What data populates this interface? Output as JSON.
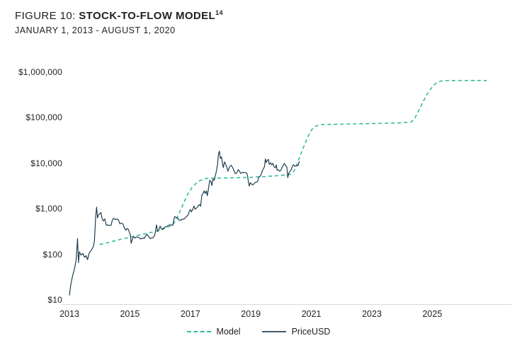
{
  "figure": {
    "title_prefix": "FIGURE 10: ",
    "title_main": "STOCK-TO-FLOW MODEL",
    "title_superscript": "14",
    "subtitle": "JANUARY 1, 2013 - AUGUST 1, 2020"
  },
  "legend": {
    "position": "bottom-center",
    "items": [
      {
        "label": "Model",
        "style": "dashed",
        "color": "#2fbc9c"
      },
      {
        "label": "PriceUSD",
        "style": "solid",
        "color": "#18384c"
      }
    ]
  },
  "colors": {
    "text": "#231f20",
    "axis_line": "#d9d9d9",
    "background": "#ffffff",
    "model_line": "#2fbc9c",
    "price_line": "#18384c"
  },
  "chart_data": {
    "type": "line",
    "title": "Stock-to-Flow Model",
    "subtitle": "January 1, 2013 - August 1, 2020",
    "grid": false,
    "x_axis": {
      "range": [
        2013,
        2026.9
      ],
      "ticks": [
        2013,
        2015,
        2017,
        2019,
        2021,
        2023,
        2025
      ]
    },
    "y_axis": {
      "scale": "log",
      "range": [
        10,
        1000000
      ],
      "ticks": [
        {
          "label": "$10",
          "value": 10
        },
        {
          "label": "$100",
          "value": 100
        },
        {
          "label": "$1,000",
          "value": 1000
        },
        {
          "label": "$10,000",
          "value": 10000
        },
        {
          "label": "$100,000",
          "value": 100000
        },
        {
          "label": "$1,000,000",
          "value": 1000000
        }
      ]
    },
    "series": [
      {
        "name": "Model",
        "color": "#2fbc9c",
        "dash": true,
        "points": [
          [
            2014.0,
            170
          ],
          [
            2014.25,
            185
          ],
          [
            2014.5,
            205
          ],
          [
            2014.75,
            225
          ],
          [
            2015.0,
            245
          ],
          [
            2015.25,
            268
          ],
          [
            2015.5,
            292
          ],
          [
            2015.75,
            320
          ],
          [
            2016.0,
            350
          ],
          [
            2016.2,
            390
          ],
          [
            2016.42,
            460
          ],
          [
            2016.55,
            640
          ],
          [
            2016.67,
            950
          ],
          [
            2016.8,
            1500
          ],
          [
            2016.92,
            2200
          ],
          [
            2017.05,
            3000
          ],
          [
            2017.17,
            3650
          ],
          [
            2017.3,
            4250
          ],
          [
            2017.42,
            4600
          ],
          [
            2017.55,
            4800
          ],
          [
            2017.8,
            4870
          ],
          [
            2018.0,
            4900
          ],
          [
            2018.5,
            4980
          ],
          [
            2019.0,
            5080
          ],
          [
            2019.5,
            5300
          ],
          [
            2020.0,
            5600
          ],
          [
            2020.3,
            5900
          ],
          [
            2020.42,
            6900
          ],
          [
            2020.52,
            9500
          ],
          [
            2020.62,
            14500
          ],
          [
            2020.72,
            21500
          ],
          [
            2020.82,
            31000
          ],
          [
            2020.92,
            44000
          ],
          [
            2021.02,
            57000
          ],
          [
            2021.12,
            66000
          ],
          [
            2021.22,
            71000
          ],
          [
            2021.35,
            73000
          ],
          [
            2021.7,
            74000
          ],
          [
            2022.2,
            75000
          ],
          [
            2022.8,
            76500
          ],
          [
            2023.4,
            78000
          ],
          [
            2024.0,
            80000
          ],
          [
            2024.3,
            83000
          ],
          [
            2024.42,
            100000
          ],
          [
            2024.52,
            135000
          ],
          [
            2024.62,
            185000
          ],
          [
            2024.72,
            250000
          ],
          [
            2024.82,
            330000
          ],
          [
            2024.92,
            420000
          ],
          [
            2025.02,
            510000
          ],
          [
            2025.12,
            590000
          ],
          [
            2025.22,
            645000
          ],
          [
            2025.32,
            668000
          ],
          [
            2025.45,
            676000
          ],
          [
            2025.8,
            678000
          ],
          [
            2026.8,
            680000
          ]
        ]
      },
      {
        "name": "PriceUSD",
        "color": "#18384c",
        "dash": false,
        "points": [
          [
            2013.0,
            13
          ],
          [
            2013.04,
            21
          ],
          [
            2013.1,
            34
          ],
          [
            2013.16,
            47
          ],
          [
            2013.22,
            75
          ],
          [
            2013.27,
            230
          ],
          [
            2013.3,
            68
          ],
          [
            2013.33,
            118
          ],
          [
            2013.38,
            100
          ],
          [
            2013.45,
            108
          ],
          [
            2013.5,
            89
          ],
          [
            2013.55,
            97
          ],
          [
            2013.6,
            79
          ],
          [
            2013.65,
            108
          ],
          [
            2013.7,
            122
          ],
          [
            2013.75,
            135
          ],
          [
            2013.8,
            160
          ],
          [
            2013.83,
            210
          ],
          [
            2013.87,
            700
          ],
          [
            2013.9,
            1120
          ],
          [
            2013.93,
            650
          ],
          [
            2013.96,
            760
          ],
          [
            2014.0,
            805
          ],
          [
            2014.04,
            860
          ],
          [
            2014.08,
            640
          ],
          [
            2014.12,
            560
          ],
          [
            2014.17,
            620
          ],
          [
            2014.22,
            450
          ],
          [
            2014.28,
            455
          ],
          [
            2014.33,
            445
          ],
          [
            2014.38,
            450
          ],
          [
            2014.42,
            590
          ],
          [
            2014.47,
            640
          ],
          [
            2014.52,
            600
          ],
          [
            2014.57,
            620
          ],
          [
            2014.62,
            590
          ],
          [
            2014.67,
            480
          ],
          [
            2014.72,
            505
          ],
          [
            2014.77,
            480
          ],
          [
            2014.82,
            390
          ],
          [
            2014.87,
            350
          ],
          [
            2014.9,
            380
          ],
          [
            2014.94,
            375
          ],
          [
            2014.98,
            320
          ],
          [
            2015.02,
            270
          ],
          [
            2015.04,
            180
          ],
          [
            2015.08,
            220
          ],
          [
            2015.12,
            255
          ],
          [
            2015.17,
            235
          ],
          [
            2015.22,
            250
          ],
          [
            2015.27,
            245
          ],
          [
            2015.32,
            235
          ],
          [
            2015.37,
            225
          ],
          [
            2015.42,
            237
          ],
          [
            2015.47,
            230
          ],
          [
            2015.52,
            262
          ],
          [
            2015.57,
            285
          ],
          [
            2015.62,
            255
          ],
          [
            2015.67,
            230
          ],
          [
            2015.72,
            236
          ],
          [
            2015.77,
            240
          ],
          [
            2015.82,
            270
          ],
          [
            2015.85,
            335
          ],
          [
            2015.88,
            460
          ],
          [
            2015.92,
            330
          ],
          [
            2015.96,
            355
          ],
          [
            2016.0,
            432
          ],
          [
            2016.04,
            380
          ],
          [
            2016.08,
            373
          ],
          [
            2016.13,
            395
          ],
          [
            2016.17,
            415
          ],
          [
            2016.22,
            418
          ],
          [
            2016.27,
            450
          ],
          [
            2016.32,
            460
          ],
          [
            2016.37,
            455
          ],
          [
            2016.42,
            450
          ],
          [
            2016.45,
            580
          ],
          [
            2016.48,
            700
          ],
          [
            2016.52,
            670
          ],
          [
            2016.57,
            660
          ],
          [
            2016.62,
            590
          ],
          [
            2016.67,
            575
          ],
          [
            2016.72,
            610
          ],
          [
            2016.77,
            610
          ],
          [
            2016.82,
            635
          ],
          [
            2016.87,
            700
          ],
          [
            2016.92,
            745
          ],
          [
            2016.96,
            905
          ],
          [
            2017.0,
            995
          ],
          [
            2017.03,
            890
          ],
          [
            2017.08,
            995
          ],
          [
            2017.12,
            1190
          ],
          [
            2017.16,
            1010
          ],
          [
            2017.21,
            1080
          ],
          [
            2017.26,
            1190
          ],
          [
            2017.3,
            1290
          ],
          [
            2017.34,
            1180
          ],
          [
            2017.38,
            2050
          ],
          [
            2017.42,
            2250
          ],
          [
            2017.46,
            2550
          ],
          [
            2017.49,
            2250
          ],
          [
            2017.53,
            2550
          ],
          [
            2017.56,
            2000
          ],
          [
            2017.6,
            2880
          ],
          [
            2017.64,
            4380
          ],
          [
            2017.68,
            4150
          ],
          [
            2017.71,
            3350
          ],
          [
            2017.75,
            4630
          ],
          [
            2017.79,
            4360
          ],
          [
            2017.83,
            5650
          ],
          [
            2017.87,
            7400
          ],
          [
            2017.9,
            9900
          ],
          [
            2017.93,
            16600
          ],
          [
            2017.96,
            19100
          ],
          [
            2017.99,
            13200
          ],
          [
            2018.03,
            14300
          ],
          [
            2018.06,
            10200
          ],
          [
            2018.09,
            8300
          ],
          [
            2018.13,
            11100
          ],
          [
            2018.17,
            9700
          ],
          [
            2018.21,
            8250
          ],
          [
            2018.24,
            6900
          ],
          [
            2018.28,
            8100
          ],
          [
            2018.31,
            8900
          ],
          [
            2018.35,
            9350
          ],
          [
            2018.39,
            8450
          ],
          [
            2018.43,
            7450
          ],
          [
            2018.47,
            6350
          ],
          [
            2018.51,
            6100
          ],
          [
            2018.55,
            6650
          ],
          [
            2018.58,
            7500
          ],
          [
            2018.62,
            7050
          ],
          [
            2018.66,
            6200
          ],
          [
            2018.7,
            6400
          ],
          [
            2018.74,
            6550
          ],
          [
            2018.78,
            6400
          ],
          [
            2018.82,
            6450
          ],
          [
            2018.86,
            6350
          ],
          [
            2018.89,
            5500
          ],
          [
            2018.92,
            4000
          ],
          [
            2018.95,
            3250
          ],
          [
            2018.98,
            3850
          ],
          [
            2019.02,
            3650
          ],
          [
            2019.06,
            3450
          ],
          [
            2019.1,
            3650
          ],
          [
            2019.14,
            3900
          ],
          [
            2019.18,
            3980
          ],
          [
            2019.22,
            4100
          ],
          [
            2019.26,
            5050
          ],
          [
            2019.3,
            5300
          ],
          [
            2019.34,
            5800
          ],
          [
            2019.38,
            7100
          ],
          [
            2019.42,
            7950
          ],
          [
            2019.45,
            8650
          ],
          [
            2019.48,
            12900
          ],
          [
            2019.51,
            10700
          ],
          [
            2019.54,
            11900
          ],
          [
            2019.58,
            12600
          ],
          [
            2019.61,
            9800
          ],
          [
            2019.65,
            10600
          ],
          [
            2019.69,
            9500
          ],
          [
            2019.73,
            10300
          ],
          [
            2019.77,
            8500
          ],
          [
            2019.81,
            8250
          ],
          [
            2019.84,
            9550
          ],
          [
            2019.87,
            7300
          ],
          [
            2019.91,
            7450
          ],
          [
            2019.95,
            6900
          ],
          [
            2019.99,
            7250
          ],
          [
            2020.03,
            8300
          ],
          [
            2020.07,
            9350
          ],
          [
            2020.11,
            10250
          ],
          [
            2020.15,
            9150
          ],
          [
            2020.19,
            8600
          ],
          [
            2020.22,
            4990
          ],
          [
            2020.25,
            6250
          ],
          [
            2020.29,
            6750
          ],
          [
            2020.33,
            7300
          ],
          [
            2020.37,
            8800
          ],
          [
            2020.41,
            9650
          ],
          [
            2020.45,
            8900
          ],
          [
            2020.49,
            9150
          ],
          [
            2020.53,
            9250
          ],
          [
            2020.56,
            9150
          ],
          [
            2020.59,
            10900
          ],
          [
            2020.62,
            11350
          ]
        ]
      }
    ]
  }
}
